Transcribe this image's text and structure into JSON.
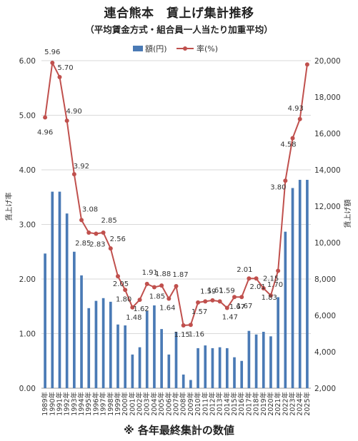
{
  "title": "連合熊本　賃上げ集計推移",
  "subtitle": "（平均賃金方式・組合員一人当たり加重平均）",
  "footnote": "※ 各年最終集計の数値",
  "colors": {
    "bar": "#4a7ab5",
    "line": "#c0504d",
    "grid": "#d9d9d9",
    "axis": "#9a9a9a"
  },
  "chart_data": {
    "type": "bar+line",
    "categories": [
      "1989年",
      "1990年",
      "1991年",
      "1992年",
      "1993年",
      "1994年",
      "1995年",
      "1996年",
      "1997年",
      "1998年",
      "1999年",
      "2000年",
      "2001年",
      "2002年",
      "2003年",
      "2004年",
      "2005年",
      "2006年",
      "2007年",
      "2008年",
      "2009年",
      "2010年",
      "2011年",
      "2012年",
      "2013年",
      "2014年",
      "2015年",
      "2016年",
      "2017年",
      "2018年",
      "2019年",
      "2020年",
      "2021年",
      "2022年",
      "2023年",
      "2024年",
      "2025年"
    ],
    "legend": [
      "額(円)",
      "率(%)"
    ],
    "legend_position": "top",
    "y_left": {
      "label": "賃上げ率",
      "min": 0,
      "max": 6,
      "ticks": [
        "0.00",
        "1.00",
        "2.00",
        "3.00",
        "4.00",
        "5.00",
        "6.00"
      ]
    },
    "y_right": {
      "label": "賃上げ額",
      "min": 2000,
      "max": 20000,
      "ticks": [
        "2,000",
        "4,000",
        "6,000",
        "8,000",
        "10,000",
        "12,000",
        "14,000",
        "16,000",
        "18,000",
        "20,000"
      ]
    },
    "grid": true,
    "series": [
      {
        "name": "額(円)",
        "type": "bar",
        "axis": "right",
        "values": [
          9400,
          12800,
          12800,
          11600,
          9500,
          8200,
          6400,
          6800,
          6950,
          6750,
          5500,
          5450,
          3850,
          4250,
          6250,
          6550,
          5250,
          3850,
          5100,
          2750,
          2450,
          4200,
          4350,
          4200,
          4250,
          4200,
          3700,
          3500,
          5150,
          4950,
          5100,
          4850,
          7000,
          10600,
          13000,
          13450,
          13450
        ]
      },
      {
        "name": "率(%)",
        "type": "line",
        "axis": "left",
        "values": [
          4.96,
          5.96,
          5.7,
          4.9,
          3.92,
          3.08,
          2.85,
          2.83,
          2.85,
          2.56,
          2.05,
          1.8,
          1.48,
          1.62,
          1.91,
          1.85,
          1.88,
          1.64,
          1.87,
          1.15,
          1.16,
          1.57,
          1.59,
          1.61,
          1.59,
          1.47,
          1.67,
          1.67,
          2.01,
          2.01,
          1.83,
          1.7,
          2.15,
          3.8,
          4.58,
          4.93,
          5.93
        ],
        "labels": [
          "4.96",
          "5.96",
          "5.70",
          "4.90",
          "3.92",
          "3.08",
          "2.85",
          "2.83",
          "2.85",
          "2.56",
          "2.05",
          "1.80",
          "1.48",
          "1.62",
          "1.91",
          "1.85",
          "1.88",
          "1.64",
          "1.87",
          "1.15",
          "1.16",
          "1.57",
          "1.59",
          "1.61",
          "1.59",
          "1.47",
          "1.67",
          "1.67",
          "2.01",
          "2.01",
          "1.83",
          "1.70",
          "2.15",
          "3.80",
          "4.58",
          "4.93",
          ""
        ]
      }
    ]
  }
}
